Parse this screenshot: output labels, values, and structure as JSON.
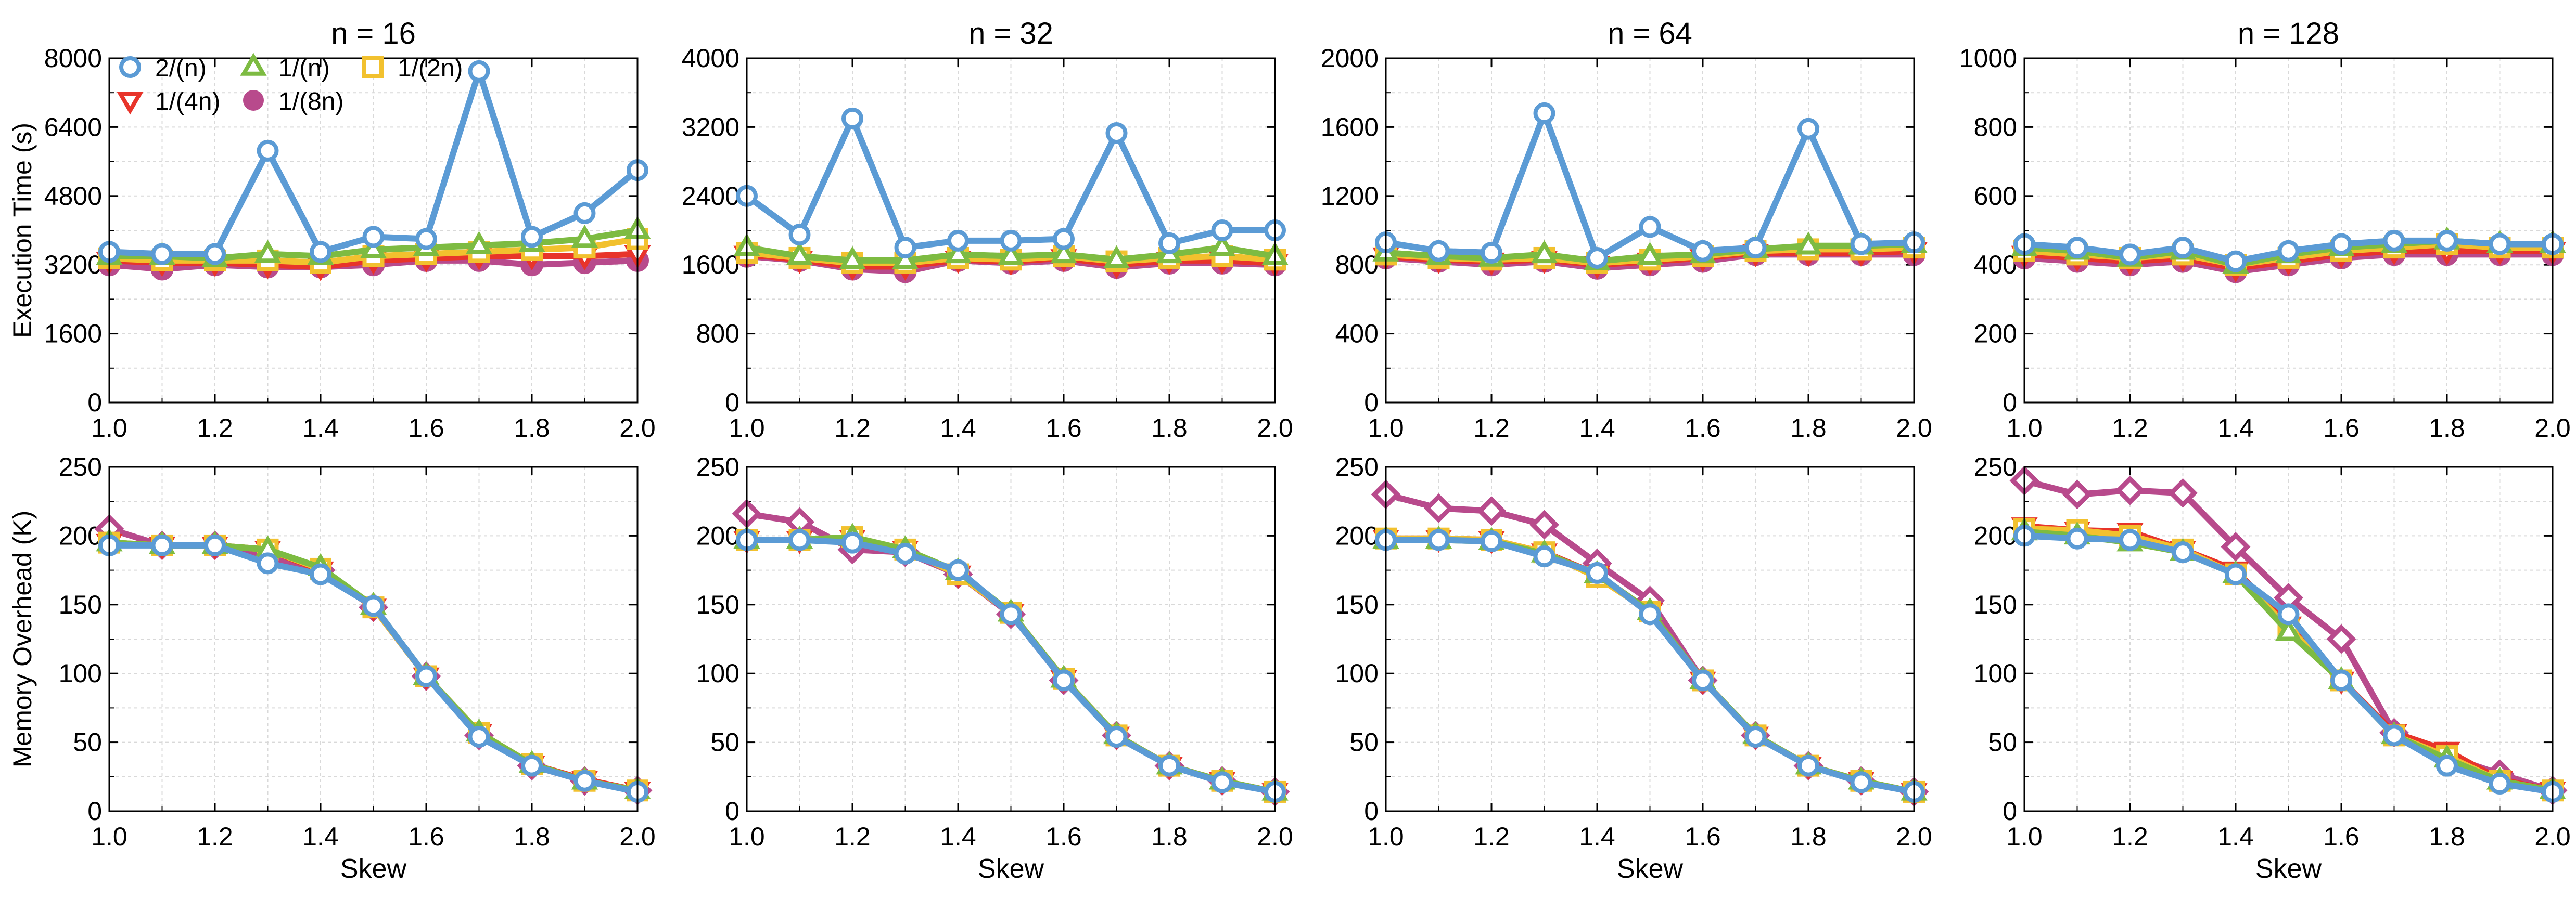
{
  "series_styles": [
    {
      "name": "2/(n)",
      "color": "#5b9bd5",
      "marker": "circle-open"
    },
    {
      "name": "1/(n)",
      "color": "#7dbb42",
      "marker": "triangle-up"
    },
    {
      "name": "1/(2n)",
      "color": "#f2c12e",
      "marker": "square-open"
    },
    {
      "name": "1/(4n)",
      "color": "#e8342a",
      "marker": "triangle-down"
    },
    {
      "name": "1/(8n)",
      "color": "#b84a8c",
      "marker": "circle-filled"
    }
  ],
  "legend": {
    "entries": [
      "2/(n)",
      "1/(n)",
      "1/(2n)",
      "1/(4n)",
      "1/(8n)"
    ],
    "placement": "top-left of first panel"
  },
  "chart_data": [
    {
      "type": "line",
      "title": "n = 16",
      "xlabel": "",
      "ylabel": "Execution Time (s)",
      "xlim": [
        1.0,
        2.0
      ],
      "ylim": [
        0,
        8000
      ],
      "xticks": [
        "1.0",
        "1.2",
        "1.4",
        "1.6",
        "1.8",
        "2.0"
      ],
      "yticks": [
        "0",
        "1600",
        "3200",
        "4800",
        "6400",
        "8000"
      ],
      "grid": true,
      "x": [
        1.0,
        1.1,
        1.2,
        1.3,
        1.4,
        1.5,
        1.6,
        1.7,
        1.8,
        1.9,
        2.0
      ],
      "series": [
        {
          "name": "1/(8n)",
          "values": [
            3200,
            3100,
            3200,
            3150,
            3150,
            3200,
            3300,
            3300,
            3200,
            3250,
            3300
          ]
        },
        {
          "name": "1/(4n)",
          "values": [
            3300,
            3250,
            3250,
            3200,
            3150,
            3300,
            3350,
            3400,
            3400,
            3400,
            3450
          ]
        },
        {
          "name": "1/(2n)",
          "values": [
            3350,
            3300,
            3300,
            3300,
            3250,
            3400,
            3450,
            3500,
            3550,
            3600,
            3800
          ]
        },
        {
          "name": "1/(n)",
          "values": [
            3400,
            3400,
            3350,
            3450,
            3400,
            3550,
            3600,
            3650,
            3700,
            3800,
            4000
          ]
        },
        {
          "name": "2/(n)",
          "values": [
            3500,
            3450,
            3450,
            5850,
            3500,
            3850,
            3800,
            7700,
            3850,
            4400,
            5400
          ]
        }
      ]
    },
    {
      "type": "line",
      "title": "n = 32",
      "xlabel": "",
      "ylabel": "",
      "xlim": [
        1.0,
        2.0
      ],
      "ylim": [
        0,
        4000
      ],
      "xticks": [
        "1.0",
        "1.2",
        "1.4",
        "1.6",
        "1.8",
        "2.0"
      ],
      "yticks": [
        "0",
        "800",
        "1600",
        "2400",
        "3200",
        "4000"
      ],
      "grid": true,
      "x": [
        1.0,
        1.1,
        1.2,
        1.3,
        1.4,
        1.5,
        1.6,
        1.7,
        1.8,
        1.9,
        2.0
      ],
      "series": [
        {
          "name": "1/(8n)",
          "values": [
            1700,
            1650,
            1550,
            1520,
            1650,
            1620,
            1650,
            1570,
            1620,
            1620,
            1600
          ]
        },
        {
          "name": "1/(4n)",
          "values": [
            1720,
            1660,
            1580,
            1580,
            1660,
            1640,
            1680,
            1600,
            1650,
            1650,
            1620
          ]
        },
        {
          "name": "1/(2n)",
          "values": [
            1740,
            1680,
            1620,
            1620,
            1680,
            1660,
            1700,
            1640,
            1680,
            1700,
            1660
          ]
        },
        {
          "name": "1/(n)",
          "values": [
            1800,
            1700,
            1650,
            1650,
            1720,
            1700,
            1720,
            1660,
            1720,
            1800,
            1700
          ]
        },
        {
          "name": "2/(n)",
          "values": [
            2400,
            1950,
            3300,
            1800,
            1880,
            1880,
            1900,
            3130,
            1850,
            2000,
            2000
          ]
        }
      ]
    },
    {
      "type": "line",
      "title": "n = 64",
      "xlabel": "",
      "ylabel": "",
      "xlim": [
        1.0,
        2.0
      ],
      "ylim": [
        0,
        2000
      ],
      "xticks": [
        "1.0",
        "1.2",
        "1.4",
        "1.6",
        "1.8",
        "2.0"
      ],
      "yticks": [
        "0",
        "400",
        "800",
        "1200",
        "1600",
        "2000"
      ],
      "grid": true,
      "x": [
        1.0,
        1.1,
        1.2,
        1.3,
        1.4,
        1.5,
        1.6,
        1.7,
        1.8,
        1.9,
        2.0
      ],
      "series": [
        {
          "name": "1/(8n)",
          "values": [
            840,
            820,
            800,
            820,
            780,
            800,
            820,
            860,
            860,
            860,
            860
          ]
        },
        {
          "name": "1/(4n)",
          "values": [
            850,
            830,
            820,
            830,
            800,
            820,
            840,
            870,
            870,
            870,
            880
          ]
        },
        {
          "name": "1/(2n)",
          "values": [
            860,
            840,
            830,
            840,
            810,
            830,
            850,
            880,
            890,
            890,
            900
          ]
        },
        {
          "name": "1/(n)",
          "values": [
            870,
            850,
            840,
            860,
            820,
            850,
            860,
            890,
            910,
            910,
            920
          ]
        },
        {
          "name": "2/(n)",
          "values": [
            930,
            880,
            870,
            1680,
            840,
            1020,
            880,
            900,
            1590,
            920,
            930
          ]
        }
      ]
    },
    {
      "type": "line",
      "title": "n = 128",
      "xlabel": "",
      "ylabel": "",
      "xlim": [
        1.0,
        2.0
      ],
      "ylim": [
        0,
        1000
      ],
      "xticks": [
        "1.0",
        "1.2",
        "1.4",
        "1.6",
        "1.8",
        "2.0"
      ],
      "yticks": [
        "0",
        "200",
        "400",
        "600",
        "800",
        "1000"
      ],
      "grid": true,
      "x": [
        1.0,
        1.1,
        1.2,
        1.3,
        1.4,
        1.5,
        1.6,
        1.7,
        1.8,
        1.9,
        2.0
      ],
      "series": [
        {
          "name": "1/(8n)",
          "values": [
            420,
            410,
            400,
            410,
            380,
            400,
            420,
            430,
            430,
            430,
            430
          ]
        },
        {
          "name": "1/(4n)",
          "values": [
            430,
            420,
            410,
            420,
            390,
            410,
            430,
            440,
            440,
            440,
            440
          ]
        },
        {
          "name": "1/(2n)",
          "values": [
            440,
            430,
            420,
            430,
            400,
            420,
            440,
            450,
            460,
            450,
            450
          ]
        },
        {
          "name": "1/(n)",
          "values": [
            450,
            440,
            420,
            440,
            400,
            430,
            450,
            460,
            470,
            460,
            460
          ]
        },
        {
          "name": "2/(n)",
          "values": [
            460,
            450,
            430,
            450,
            410,
            440,
            460,
            470,
            470,
            460,
            460
          ]
        }
      ]
    },
    {
      "type": "line",
      "title": "",
      "xlabel": "Skew",
      "ylabel": "Memory Overhead (K)",
      "xlim": [
        1.0,
        2.0
      ],
      "ylim": [
        0,
        250
      ],
      "xticks": [
        "1.0",
        "1.2",
        "1.4",
        "1.6",
        "1.8",
        "2.0"
      ],
      "yticks": [
        "0",
        "50",
        "100",
        "150",
        "200",
        "250"
      ],
      "grid": true,
      "x": [
        1.0,
        1.1,
        1.2,
        1.3,
        1.4,
        1.5,
        1.6,
        1.7,
        1.8,
        1.9,
        2.0
      ],
      "series": [
        {
          "name": "1/(8n)",
          "values": [
            205,
            193,
            193,
            185,
            175,
            148,
            98,
            55,
            33,
            22,
            15
          ]
        },
        {
          "name": "1/(4n)",
          "values": [
            195,
            193,
            193,
            190,
            175,
            148,
            98,
            57,
            34,
            23,
            15
          ]
        },
        {
          "name": "1/(2n)",
          "values": [
            195,
            193,
            193,
            190,
            176,
            148,
            98,
            57,
            34,
            22,
            15
          ]
        },
        {
          "name": "1/(n)",
          "values": [
            195,
            193,
            193,
            190,
            177,
            149,
            98,
            57,
            34,
            22,
            15
          ]
        },
        {
          "name": "2/(n)",
          "values": [
            193,
            193,
            193,
            180,
            172,
            149,
            98,
            54,
            33,
            22,
            14
          ]
        }
      ]
    },
    {
      "type": "line",
      "title": "",
      "xlabel": "Skew",
      "ylabel": "",
      "xlim": [
        1.0,
        2.0
      ],
      "ylim": [
        0,
        250
      ],
      "xticks": [
        "1.0",
        "1.2",
        "1.4",
        "1.6",
        "1.8",
        "2.0"
      ],
      "yticks": [
        "0",
        "50",
        "100",
        "150",
        "200",
        "250"
      ],
      "grid": true,
      "x": [
        1.0,
        1.1,
        1.2,
        1.3,
        1.4,
        1.5,
        1.6,
        1.7,
        1.8,
        1.9,
        2.0
      ],
      "series": [
        {
          "name": "1/(8n)",
          "values": [
            216,
            210,
            190,
            188,
            172,
            143,
            95,
            55,
            33,
            22,
            14
          ]
        },
        {
          "name": "1/(4n)",
          "values": [
            197,
            197,
            198,
            190,
            172,
            144,
            96,
            55,
            33,
            22,
            14
          ]
        },
        {
          "name": "1/(2n)",
          "values": [
            197,
            197,
            199,
            190,
            172,
            144,
            96,
            55,
            33,
            22,
            14
          ]
        },
        {
          "name": "1/(n)",
          "values": [
            197,
            197,
            199,
            190,
            174,
            144,
            96,
            55,
            33,
            22,
            14
          ]
        },
        {
          "name": "2/(n)",
          "values": [
            197,
            197,
            195,
            187,
            175,
            143,
            95,
            54,
            33,
            21,
            14
          ]
        }
      ]
    },
    {
      "type": "line",
      "title": "",
      "xlabel": "Skew",
      "ylabel": "",
      "xlim": [
        1.0,
        2.0
      ],
      "ylim": [
        0,
        250
      ],
      "xticks": [
        "1.0",
        "1.2",
        "1.4",
        "1.6",
        "1.8",
        "2.0"
      ],
      "yticks": [
        "0",
        "50",
        "100",
        "150",
        "200",
        "250"
      ],
      "grid": true,
      "x": [
        1.0,
        1.1,
        1.2,
        1.3,
        1.4,
        1.5,
        1.6,
        1.7,
        1.8,
        1.9,
        2.0
      ],
      "series": [
        {
          "name": "1/(8n)",
          "values": [
            230,
            220,
            218,
            208,
            180,
            153,
            95,
            55,
            33,
            22,
            14
          ]
        },
        {
          "name": "1/(4n)",
          "values": [
            198,
            198,
            197,
            188,
            172,
            145,
            95,
            55,
            33,
            22,
            14
          ]
        },
        {
          "name": "1/(2n)",
          "values": [
            198,
            198,
            197,
            188,
            170,
            145,
            95,
            55,
            33,
            22,
            14
          ]
        },
        {
          "name": "1/(n)",
          "values": [
            197,
            197,
            196,
            187,
            172,
            145,
            95,
            55,
            33,
            22,
            14
          ]
        },
        {
          "name": "2/(n)",
          "values": [
            197,
            197,
            196,
            185,
            173,
            143,
            95,
            54,
            33,
            21,
            14
          ]
        }
      ]
    },
    {
      "type": "line",
      "title": "",
      "xlabel": "Skew",
      "ylabel": "",
      "xlim": [
        1.0,
        2.0
      ],
      "ylim": [
        0,
        250
      ],
      "xticks": [
        "1.0",
        "1.2",
        "1.4",
        "1.6",
        "1.8",
        "2.0"
      ],
      "yticks": [
        "0",
        "50",
        "100",
        "150",
        "200",
        "250"
      ],
      "grid": true,
      "x": [
        1.0,
        1.1,
        1.2,
        1.3,
        1.4,
        1.5,
        1.6,
        1.7,
        1.8,
        1.9,
        2.0
      ],
      "series": [
        {
          "name": "1/(8n)",
          "values": [
            240,
            230,
            233,
            231,
            192,
            155,
            125,
            57,
            40,
            27,
            15
          ]
        },
        {
          "name": "1/(4n)",
          "values": [
            207,
            204,
            203,
            190,
            175,
            135,
            95,
            57,
            44,
            23,
            15
          ]
        },
        {
          "name": "1/(2n)",
          "values": [
            205,
            204,
            200,
            190,
            172,
            133,
            95,
            55,
            40,
            22,
            15
          ]
        },
        {
          "name": "1/(n)",
          "values": [
            203,
            200,
            195,
            188,
            172,
            130,
            95,
            55,
            38,
            22,
            15
          ]
        },
        {
          "name": "2/(n)",
          "values": [
            200,
            198,
            197,
            188,
            172,
            143,
            95,
            55,
            33,
            20,
            14
          ]
        }
      ]
    }
  ]
}
